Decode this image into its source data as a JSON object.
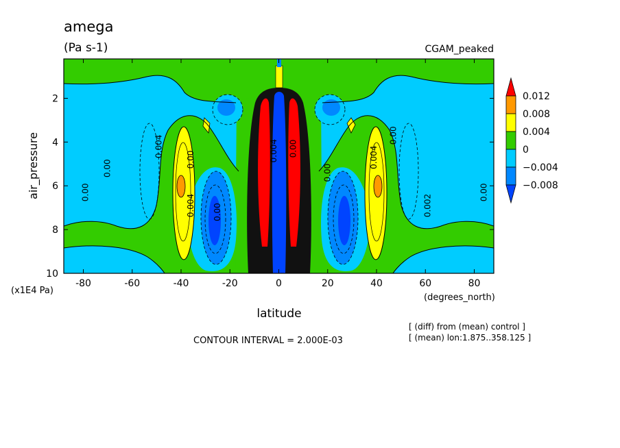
{
  "chart_data": {
    "type": "heatmap",
    "title": "amega",
    "units": "(Pa s-1)",
    "experiment": "CGAM_peaked",
    "xlabel": "latitude",
    "xunits": "(degrees_north)",
    "ylabel": "air_pressure",
    "yunits": "(x1E4 Pa)",
    "xlim": [
      -88,
      88
    ],
    "ylim": [
      0.2,
      10
    ],
    "x_ticks": [
      -80,
      -60,
      -40,
      -20,
      0,
      20,
      40,
      60,
      80
    ],
    "x_tick_labels": [
      "-80",
      "-60",
      "-40",
      "-20",
      "0",
      "20",
      "40",
      "60",
      "80"
    ],
    "y_ticks": [
      2,
      4,
      6,
      8,
      10
    ],
    "y_tick_labels": [
      "2",
      "4",
      "6",
      "8",
      "10"
    ],
    "contour_interval_text": "CONTOUR INTERVAL = 2.000E-03",
    "notes": [
      "[ (diff) from (mean) control ]",
      "[ (mean) lon:1.875..358.125 ]"
    ],
    "legend": {
      "levels": [
        0.012,
        0.008,
        0.004,
        0,
        -0.004,
        -0.008
      ],
      "labels": [
        "0.012",
        "0.008",
        "0.004",
        "0",
        "−0.004",
        "−0.008"
      ],
      "colors": [
        "#ff0000",
        "#ff9900",
        "#ffff00",
        "#33cc00",
        "#00ccff",
        "#0088ff",
        "#0044ff"
      ]
    },
    "features": [
      {
        "lat": -40,
        "p": 6,
        "value": 0.006
      },
      {
        "lat": 40,
        "p": 6,
        "value": 0.006
      },
      {
        "lat": -28,
        "p": 7.2,
        "value": -0.006
      },
      {
        "lat": 28,
        "p": 7.2,
        "value": -0.006
      },
      {
        "lat": -8,
        "p": 5.8,
        "value": 0.012
      },
      {
        "lat": 8,
        "p": 5.8,
        "value": 0.012
      },
      {
        "lat": 0,
        "p": 5.5,
        "value": -0.008
      }
    ],
    "contour_labels": [
      "0.00",
      "0.00",
      "0.004",
      "0.00",
      "0.004",
      "0.00",
      "0.004",
      "0.00",
      "0.004",
      "0.00",
      "0.002",
      "0.00",
      "0.00"
    ]
  },
  "colors": {
    "red": "#ff0000",
    "orange": "#ff9900",
    "yellow": "#ffff00",
    "green": "#33cc00",
    "cyan": "#00ccff",
    "blue": "#0088ff",
    "deepblue": "#0044ff"
  }
}
